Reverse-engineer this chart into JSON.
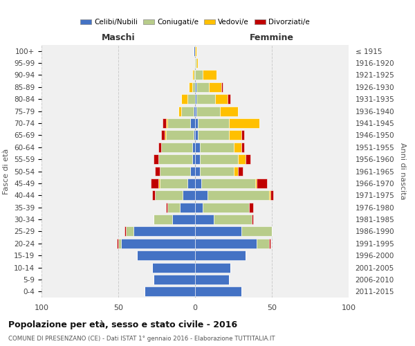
{
  "age_groups": [
    "0-4",
    "5-9",
    "10-14",
    "15-19",
    "20-24",
    "25-29",
    "30-34",
    "35-39",
    "40-44",
    "45-49",
    "50-54",
    "55-59",
    "60-64",
    "65-69",
    "70-74",
    "75-79",
    "80-84",
    "85-89",
    "90-94",
    "95-99",
    "100+"
  ],
  "birth_years": [
    "2011-2015",
    "2006-2010",
    "2001-2005",
    "1996-2000",
    "1991-1995",
    "1986-1990",
    "1981-1985",
    "1976-1980",
    "1971-1975",
    "1966-1970",
    "1961-1965",
    "1956-1960",
    "1951-1955",
    "1946-1950",
    "1941-1945",
    "1936-1940",
    "1931-1935",
    "1926-1930",
    "1921-1925",
    "1916-1920",
    "≤ 1915"
  ],
  "colors": {
    "celibi": "#4472c4",
    "coniugati": "#b8cc8a",
    "vedovi": "#ffc000",
    "divorziati": "#c00000"
  },
  "maschi": {
    "celibi": [
      33,
      27,
      28,
      38,
      48,
      40,
      15,
      10,
      8,
      5,
      3,
      2,
      2,
      1,
      3,
      1,
      0,
      0,
      0,
      0,
      1
    ],
    "coniugati": [
      0,
      0,
      0,
      0,
      2,
      5,
      12,
      8,
      18,
      18,
      20,
      22,
      20,
      18,
      15,
      8,
      5,
      2,
      1,
      0,
      0
    ],
    "vedovi": [
      0,
      0,
      0,
      0,
      0,
      0,
      0,
      0,
      0,
      1,
      0,
      0,
      0,
      1,
      1,
      2,
      4,
      2,
      1,
      0,
      0
    ],
    "divorziati": [
      0,
      0,
      0,
      0,
      1,
      1,
      0,
      1,
      2,
      5,
      3,
      3,
      2,
      2,
      2,
      0,
      0,
      0,
      0,
      0,
      0
    ]
  },
  "femmine": {
    "celibi": [
      30,
      22,
      23,
      33,
      40,
      30,
      12,
      5,
      8,
      4,
      3,
      3,
      3,
      2,
      2,
      1,
      1,
      1,
      0,
      0,
      0
    ],
    "coniugati": [
      0,
      0,
      0,
      0,
      8,
      20,
      25,
      30,
      40,
      35,
      22,
      25,
      22,
      20,
      20,
      15,
      12,
      8,
      5,
      1,
      0
    ],
    "vedovi": [
      0,
      0,
      0,
      0,
      0,
      0,
      0,
      0,
      1,
      1,
      3,
      5,
      5,
      8,
      20,
      12,
      8,
      8,
      9,
      1,
      1
    ],
    "divorziati": [
      0,
      0,
      0,
      0,
      1,
      0,
      1,
      3,
      2,
      7,
      3,
      3,
      2,
      2,
      0,
      0,
      2,
      1,
      0,
      0,
      0
    ]
  },
  "title": "Popolazione per età, sesso e stato civile - 2016",
  "subtitle": "COMUNE DI PRESENZANO (CE) - Dati ISTAT 1° gennaio 2016 - Elaborazione TUTTITALIA.IT",
  "header_left": "Maschi",
  "header_right": "Femmine",
  "ylabel_left": "Fasce di età",
  "ylabel_right": "Anni di nascita",
  "xlim": 100,
  "legend_labels": [
    "Celibi/Nubili",
    "Coniugati/e",
    "Vedovi/e",
    "Divorziati/e"
  ],
  "bg_color": "#ffffff",
  "plot_bg": "#f0f0f0",
  "grid_color": "#cccccc"
}
